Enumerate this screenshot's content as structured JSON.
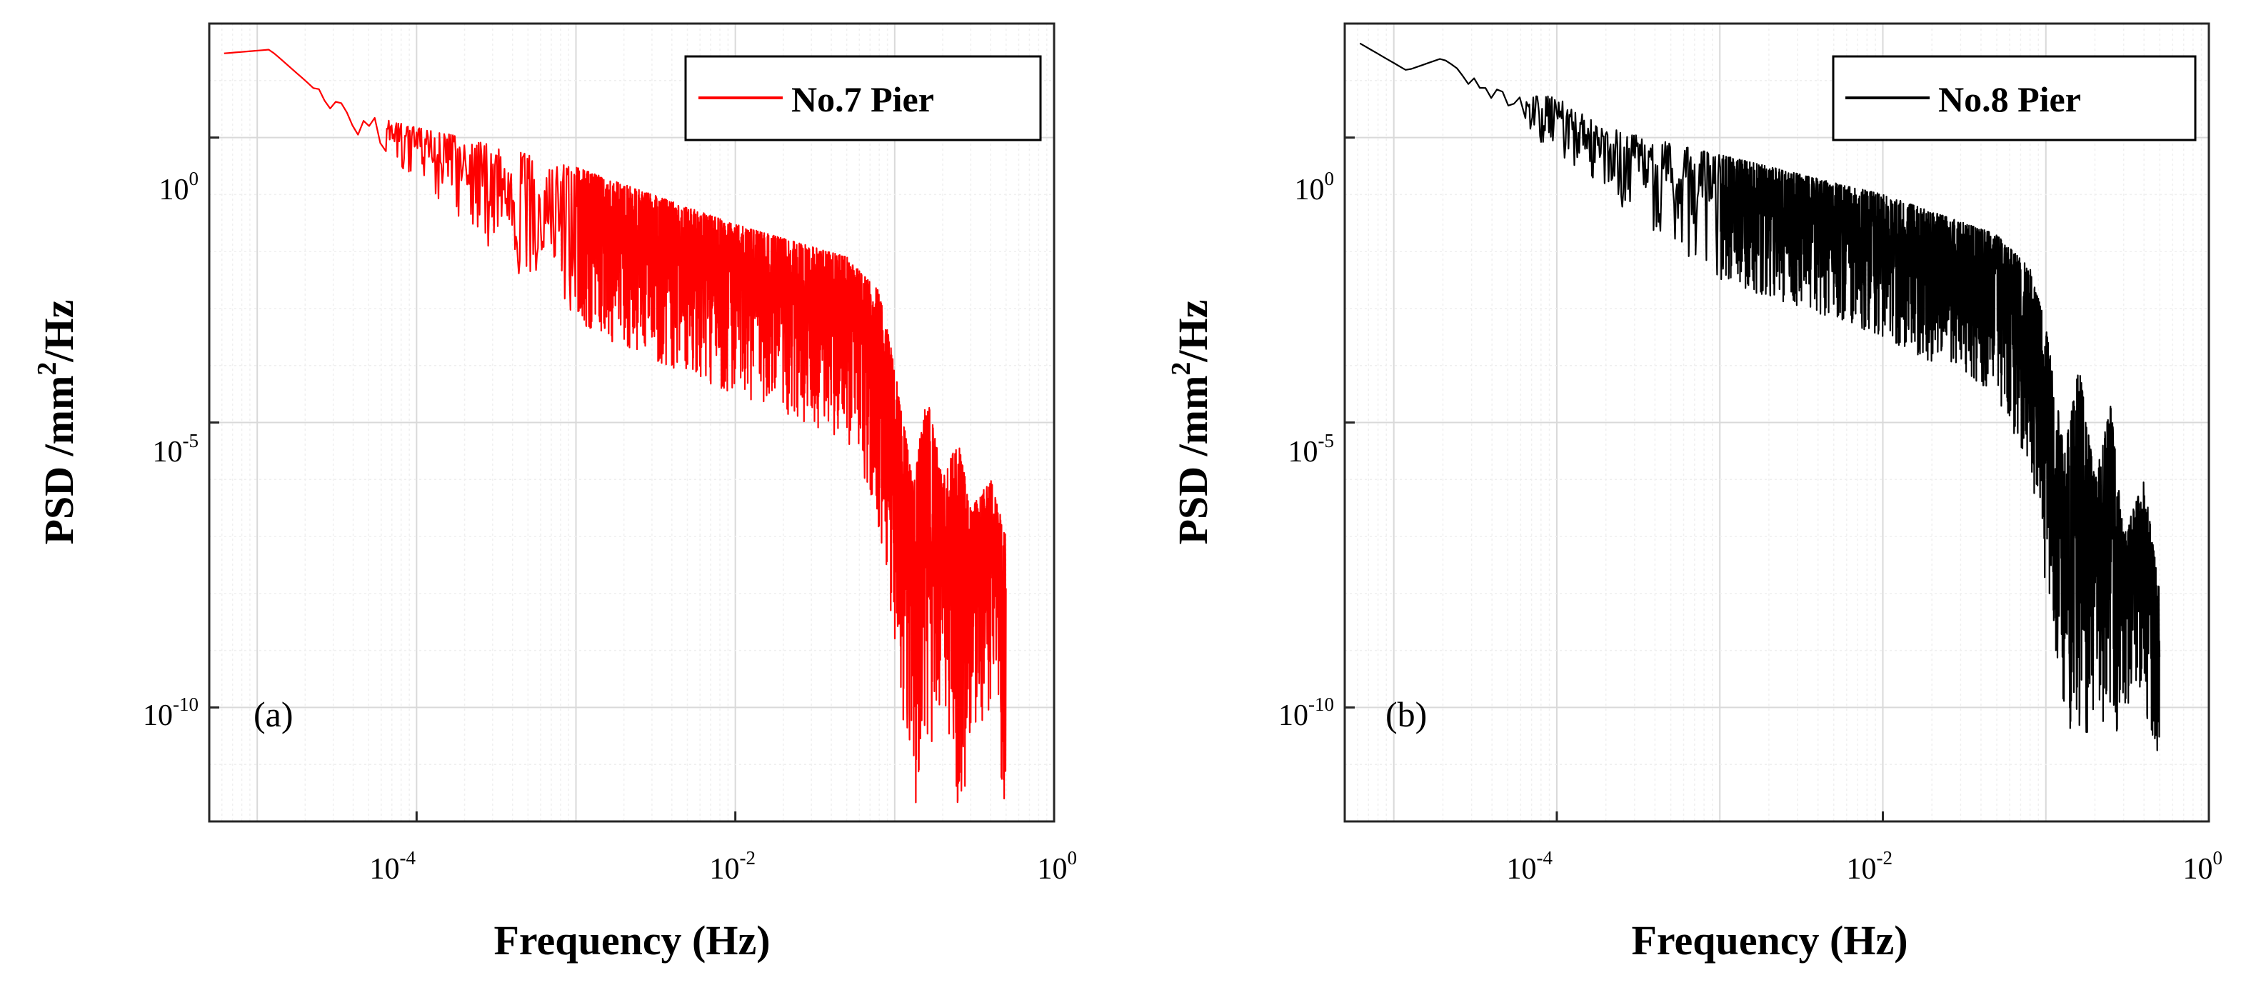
{
  "chart_data": [
    {
      "type": "line",
      "panel_label": "(a)",
      "xlabel": "Frequency (Hz)",
      "ylabel": {
        "main": "PSD /mm",
        "sup": "2",
        "tail": "/Hz"
      },
      "xscale": "log",
      "yscale": "log",
      "xlim": [
        5e-06,
        1
      ],
      "ylim": [
        1e-12,
        100.0
      ],
      "grid": true,
      "legend_position": "top-right",
      "x_ticks": [
        {
          "base": "10",
          "exp": "-4",
          "value": 0.0001
        },
        {
          "base": "10",
          "exp": "-2",
          "value": 0.01
        },
        {
          "base": "10",
          "exp": "0",
          "value": 1
        }
      ],
      "y_ticks": [
        {
          "base": "10",
          "exp": "0",
          "value": 1
        },
        {
          "base": "10",
          "exp": "-5",
          "value": 1e-05
        },
        {
          "base": "10",
          "exp": "-10",
          "value": 1e-10
        }
      ],
      "series": [
        {
          "name": "No.7 Pier",
          "color": "#ff0000",
          "envelope": {
            "upper": [
              [
                6.2e-06,
                30
              ],
              [
                1.2e-05,
                35
              ],
              [
                2e-05,
                10
              ],
              [
                4e-05,
                3
              ],
              [
                0.0001,
                1.5
              ],
              [
                0.0002,
                1
              ],
              [
                0.001,
                0.3
              ],
              [
                0.01,
                0.03
              ],
              [
                0.05,
                0.008
              ],
              [
                0.08,
                0.002
              ],
              [
                0.1,
                0.0001
              ],
              [
                0.13,
                1e-06
              ],
              [
                0.16,
                3e-05
              ],
              [
                0.2,
                1e-06
              ],
              [
                0.25,
                5e-06
              ],
              [
                0.3,
                3e-07
              ],
              [
                0.4,
                1e-06
              ],
              [
                0.5,
                1e-07
              ]
            ],
            "lower": [
              [
                6.2e-06,
                30
              ],
              [
                1.2e-05,
                35
              ],
              [
                2e-05,
                10
              ],
              [
                4e-05,
                1
              ],
              [
                0.0001,
                0.2
              ],
              [
                0.0002,
                0.03
              ],
              [
                0.001,
                0.0005
              ],
              [
                0.01,
                3e-05
              ],
              [
                0.05,
                5e-06
              ],
              [
                0.08,
                1e-07
              ],
              [
                0.1,
                1e-09
              ],
              [
                0.13,
                1e-12
              ],
              [
                0.16,
                1e-11
              ],
              [
                0.2,
                1e-10
              ],
              [
                0.25,
                1e-12
              ],
              [
                0.3,
                1e-11
              ],
              [
                0.4,
                1e-10
              ],
              [
                0.5,
                1e-12
              ]
            ]
          }
        }
      ]
    },
    {
      "type": "line",
      "panel_label": "(b)",
      "xlabel": "Frequency (Hz)",
      "ylabel": {
        "main": "PSD /mm",
        "sup": "2",
        "tail": "/Hz"
      },
      "xscale": "log",
      "yscale": "log",
      "xlim": [
        5e-06,
        1
      ],
      "ylim": [
        1e-12,
        100.0
      ],
      "grid": true,
      "legend_position": "top-right",
      "x_ticks": [
        {
          "base": "10",
          "exp": "-4",
          "value": 0.0001
        },
        {
          "base": "10",
          "exp": "-2",
          "value": 0.01
        },
        {
          "base": "10",
          "exp": "0",
          "value": 1
        }
      ],
      "y_ticks": [
        {
          "base": "10",
          "exp": "0",
          "value": 1
        },
        {
          "base": "10",
          "exp": "-5",
          "value": 1e-05
        },
        {
          "base": "10",
          "exp": "-10",
          "value": 1e-10
        }
      ],
      "series": [
        {
          "name": "No.8 Pier",
          "color": "#000000",
          "envelope": {
            "upper": [
              [
                6.2e-06,
                45
              ],
              [
                1.2e-05,
                15
              ],
              [
                2e-05,
                25
              ],
              [
                4e-05,
                8
              ],
              [
                0.0001,
                5
              ],
              [
                0.0002,
                1.5
              ],
              [
                0.001,
                0.5
              ],
              [
                0.01,
                0.1
              ],
              [
                0.05,
                0.02
              ],
              [
                0.08,
                0.005
              ],
              [
                0.1,
                0.0005
              ],
              [
                0.13,
                3e-06
              ],
              [
                0.16,
                0.0001
              ],
              [
                0.2,
                1e-06
              ],
              [
                0.25,
                2e-05
              ],
              [
                0.3,
                1e-07
              ],
              [
                0.4,
                1e-06
              ],
              [
                0.5,
                1e-08
              ]
            ],
            "lower": [
              [
                6.2e-06,
                45
              ],
              [
                1.2e-05,
                15
              ],
              [
                2e-05,
                25
              ],
              [
                4e-05,
                3
              ],
              [
                0.0001,
                0.5
              ],
              [
                0.0002,
                0.1
              ],
              [
                0.001,
                0.003
              ],
              [
                0.01,
                0.0003
              ],
              [
                0.05,
                3e-05
              ],
              [
                0.08,
                1e-06
              ],
              [
                0.1,
                1e-08
              ],
              [
                0.13,
                1e-10
              ],
              [
                0.16,
                1e-11
              ],
              [
                0.2,
                1e-10
              ],
              [
                0.25,
                1e-11
              ],
              [
                0.3,
                1e-10
              ],
              [
                0.4,
                1e-10
              ],
              [
                0.5,
                1e-11
              ]
            ]
          }
        }
      ]
    }
  ]
}
